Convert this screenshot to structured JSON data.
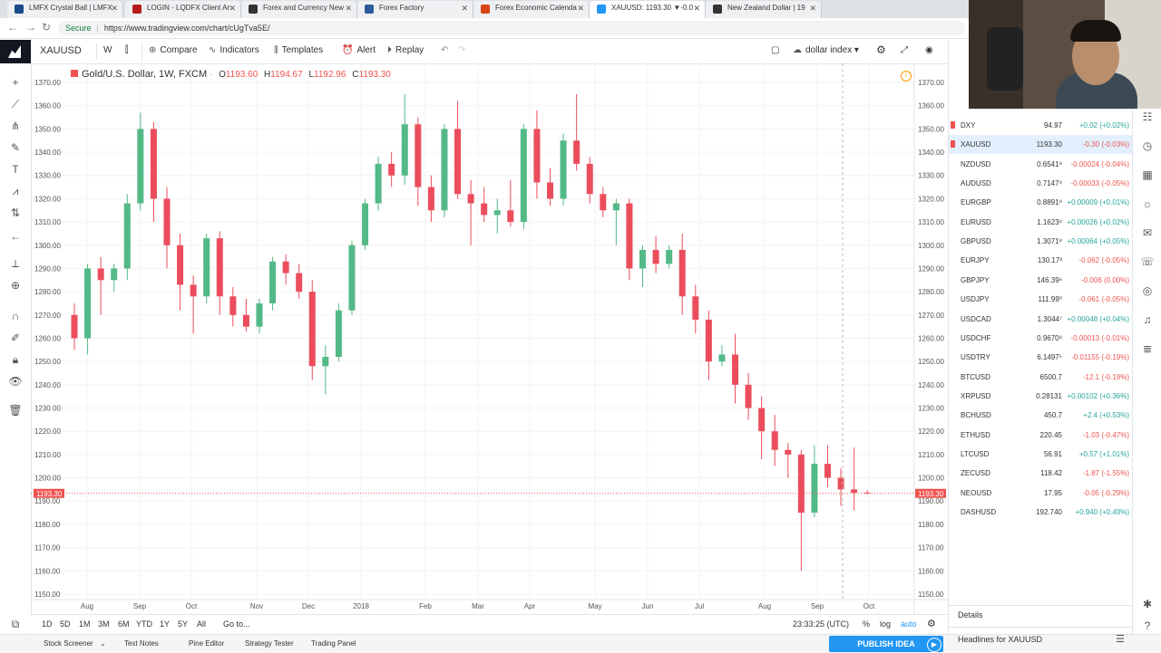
{
  "browser": {
    "tabs": [
      {
        "title": "LMFX Crystal Ball | LMFX",
        "color": "#1a4a8a"
      },
      {
        "title": "LOGIN - LQDFX Client Ar",
        "color": "#b71c1c"
      },
      {
        "title": "Forex and Currency New",
        "color": "#333333"
      },
      {
        "title": "Forex Factory",
        "color": "#2e5a9a"
      },
      {
        "title": "Forex Economic Calenda",
        "color": "#d84315"
      },
      {
        "title": "XAUUSD: 1193.30 ▼-0.0",
        "color": "#2196f3"
      },
      {
        "title": "New Zealand Dollar | 19",
        "color": "#333333"
      }
    ],
    "secure_label": "Secure",
    "url": "https://www.tradingview.com/chart/cUgTva5E/"
  },
  "toolbar": {
    "symbol": "XAUUSD",
    "interval": "W",
    "compare": "Compare",
    "indicators": "Indicators",
    "templates": "Templates",
    "alert": "Alert",
    "replay": "Replay",
    "layout_name": "dollar index"
  },
  "legend": {
    "title": "Gold/U.S. Dollar, 1W, FXCM",
    "o_label": "O",
    "o": "1193.60",
    "h_label": "H",
    "h": "1194.67",
    "l_label": "L",
    "l": "1192.96",
    "c_label": "C",
    "c": "1193.30"
  },
  "chart_data": {
    "type": "candlestick",
    "symbol": "XAUUSD",
    "interval": "1W",
    "ylim": [
      1150,
      1370
    ],
    "y_ticks": [
      "1370.00",
      "1360.00",
      "1350.00",
      "1340.00",
      "1330.00",
      "1320.00",
      "1310.00",
      "1300.00",
      "1290.00",
      "1280.00",
      "1270.00",
      "1260.00",
      "1250.00",
      "1240.00",
      "1230.00",
      "1220.00",
      "1210.00",
      "1200.00",
      "1190.00",
      "1180.00",
      "1170.00",
      "1160.00",
      "1150.00"
    ],
    "x_ticks": [
      "Aug",
      "Sep",
      "Oct",
      "Nov",
      "Dec",
      "2018",
      "Feb",
      "Mar",
      "Apr",
      "May",
      "Jun",
      "Jul",
      "Aug",
      "Sep",
      "Oct"
    ],
    "last_price": "1193.30",
    "up_color": "#53b987",
    "down_color": "#eb4d5c",
    "candles": [
      {
        "o": 1270,
        "h": 1275,
        "l": 1255,
        "c": 1260
      },
      {
        "o": 1260,
        "h": 1292,
        "l": 1253,
        "c": 1290
      },
      {
        "o": 1290,
        "h": 1295,
        "l": 1270,
        "c": 1285
      },
      {
        "o": 1285,
        "h": 1292,
        "l": 1280,
        "c": 1290
      },
      {
        "o": 1290,
        "h": 1322,
        "l": 1285,
        "c": 1318
      },
      {
        "o": 1318,
        "h": 1357,
        "l": 1315,
        "c": 1350
      },
      {
        "o": 1350,
        "h": 1353,
        "l": 1310,
        "c": 1320
      },
      {
        "o": 1320,
        "h": 1325,
        "l": 1290,
        "c": 1300
      },
      {
        "o": 1300,
        "h": 1305,
        "l": 1272,
        "c": 1283
      },
      {
        "o": 1283,
        "h": 1287,
        "l": 1262,
        "c": 1278
      },
      {
        "o": 1278,
        "h": 1305,
        "l": 1275,
        "c": 1303
      },
      {
        "o": 1303,
        "h": 1306,
        "l": 1270,
        "c": 1278
      },
      {
        "o": 1278,
        "h": 1282,
        "l": 1265,
        "c": 1270
      },
      {
        "o": 1270,
        "h": 1277,
        "l": 1263,
        "c": 1265
      },
      {
        "o": 1265,
        "h": 1277,
        "l": 1262,
        "c": 1275
      },
      {
        "o": 1275,
        "h": 1295,
        "l": 1272,
        "c": 1293
      },
      {
        "o": 1293,
        "h": 1296,
        "l": 1283,
        "c": 1288
      },
      {
        "o": 1288,
        "h": 1292,
        "l": 1277,
        "c": 1280
      },
      {
        "o": 1280,
        "h": 1285,
        "l": 1242,
        "c": 1248
      },
      {
        "o": 1248,
        "h": 1257,
        "l": 1236,
        "c": 1252
      },
      {
        "o": 1252,
        "h": 1275,
        "l": 1250,
        "c": 1272
      },
      {
        "o": 1272,
        "h": 1302,
        "l": 1270,
        "c": 1300
      },
      {
        "o": 1300,
        "h": 1320,
        "l": 1298,
        "c": 1318
      },
      {
        "o": 1318,
        "h": 1338,
        "l": 1315,
        "c": 1335
      },
      {
        "o": 1335,
        "h": 1340,
        "l": 1325,
        "c": 1330
      },
      {
        "o": 1330,
        "h": 1365,
        "l": 1326,
        "c": 1352
      },
      {
        "o": 1352,
        "h": 1355,
        "l": 1317,
        "c": 1325
      },
      {
        "o": 1325,
        "h": 1330,
        "l": 1310,
        "c": 1315
      },
      {
        "o": 1315,
        "h": 1352,
        "l": 1312,
        "c": 1350
      },
      {
        "o": 1350,
        "h": 1362,
        "l": 1320,
        "c": 1322
      },
      {
        "o": 1322,
        "h": 1328,
        "l": 1300,
        "c": 1318
      },
      {
        "o": 1318,
        "h": 1325,
        "l": 1310,
        "c": 1313
      },
      {
        "o": 1313,
        "h": 1320,
        "l": 1305,
        "c": 1315
      },
      {
        "o": 1315,
        "h": 1328,
        "l": 1308,
        "c": 1310
      },
      {
        "o": 1310,
        "h": 1352,
        "l": 1307,
        "c": 1350
      },
      {
        "o": 1350,
        "h": 1358,
        "l": 1320,
        "c": 1327
      },
      {
        "o": 1327,
        "h": 1333,
        "l": 1317,
        "c": 1320
      },
      {
        "o": 1320,
        "h": 1348,
        "l": 1317,
        "c": 1345
      },
      {
        "o": 1345,
        "h": 1365,
        "l": 1332,
        "c": 1335
      },
      {
        "o": 1335,
        "h": 1338,
        "l": 1318,
        "c": 1322
      },
      {
        "o": 1322,
        "h": 1325,
        "l": 1312,
        "c": 1315
      },
      {
        "o": 1315,
        "h": 1320,
        "l": 1300,
        "c": 1318
      },
      {
        "o": 1318,
        "h": 1320,
        "l": 1285,
        "c": 1290
      },
      {
        "o": 1290,
        "h": 1300,
        "l": 1282,
        "c": 1298
      },
      {
        "o": 1298,
        "h": 1304,
        "l": 1288,
        "c": 1292
      },
      {
        "o": 1292,
        "h": 1300,
        "l": 1290,
        "c": 1298
      },
      {
        "o": 1298,
        "h": 1305,
        "l": 1270,
        "c": 1278
      },
      {
        "o": 1278,
        "h": 1283,
        "l": 1262,
        "c": 1268
      },
      {
        "o": 1268,
        "h": 1272,
        "l": 1242,
        "c": 1250
      },
      {
        "o": 1250,
        "h": 1257,
        "l": 1248,
        "c": 1253
      },
      {
        "o": 1253,
        "h": 1262,
        "l": 1232,
        "c": 1240
      },
      {
        "o": 1240,
        "h": 1245,
        "l": 1225,
        "c": 1230
      },
      {
        "o": 1230,
        "h": 1235,
        "l": 1208,
        "c": 1220
      },
      {
        "o": 1220,
        "h": 1227,
        "l": 1205,
        "c": 1212
      },
      {
        "o": 1212,
        "h": 1215,
        "l": 1200,
        "c": 1210
      },
      {
        "o": 1210,
        "h": 1212,
        "l": 1160,
        "c": 1185
      },
      {
        "o": 1185,
        "h": 1214,
        "l": 1183,
        "c": 1206
      },
      {
        "o": 1206,
        "h": 1214,
        "l": 1196,
        "c": 1200
      },
      {
        "o": 1200,
        "h": 1204,
        "l": 1188,
        "c": 1195
      },
      {
        "o": 1195,
        "h": 1213,
        "l": 1186,
        "c": 1193.6
      },
      {
        "o": 1193.6,
        "h": 1194.67,
        "l": 1192.96,
        "c": 1193.3
      }
    ]
  },
  "bottombar": {
    "ranges": [
      "1D",
      "5D",
      "1M",
      "3M",
      "6M",
      "YTD",
      "1Y",
      "5Y",
      "All"
    ],
    "goto": "Go to...",
    "time": "23:33:25 (UTC)",
    "pct": "%",
    "log": "log",
    "auto": "auto"
  },
  "footer": {
    "tabs": [
      "Stock Screener",
      "Text Notes",
      "Pine Editor",
      "Strategy Tester",
      "Trading Panel"
    ],
    "publish": "PUBLISH IDEA"
  },
  "watchlist": {
    "rows": [
      {
        "sym": "DXY",
        "last": "94.97",
        "chg": "+0.02 (+0.02%)",
        "up": true,
        "flag": true
      },
      {
        "sym": "XAUUSD",
        "last": "1193.30",
        "chg": "-0.30 (-0.03%)",
        "up": false,
        "flag": true,
        "sel": true
      },
      {
        "sym": "NZDUSD",
        "last": "0.6541⁹",
        "chg": "-0.00024 (-0.04%)",
        "up": false
      },
      {
        "sym": "AUDUSD",
        "last": "0.7147⁹",
        "chg": "-0.00033 (-0.05%)",
        "up": false
      },
      {
        "sym": "EURGBP",
        "last": "0.8891⁹",
        "chg": "+0.00009 (+0.01%)",
        "up": true
      },
      {
        "sym": "EURUSD",
        "last": "1.1623⁸",
        "chg": "+0.00026 (+0.02%)",
        "up": true
      },
      {
        "sym": "GBPUSD",
        "last": "1.3071⁸",
        "chg": "+0.00064 (+0.05%)",
        "up": true
      },
      {
        "sym": "EURJPY",
        "last": "130.17³",
        "chg": "-0.062 (-0.05%)",
        "up": false
      },
      {
        "sym": "GBPJPY",
        "last": "146.39⁶",
        "chg": "-0.006 (0.00%)",
        "up": false
      },
      {
        "sym": "USDJPY",
        "last": "111.99⁰",
        "chg": "-0.061 (-0.05%)",
        "up": false
      },
      {
        "sym": "USDCAD",
        "last": "1.3044⁷",
        "chg": "+0.00048 (+0.04%)",
        "up": true
      },
      {
        "sym": "USDCHF",
        "last": "0.9670⁸",
        "chg": "-0.00013 (-0.01%)",
        "up": false
      },
      {
        "sym": "USDTRY",
        "last": "6.1497⁵",
        "chg": "-0.01155 (-0.19%)",
        "up": false
      },
      {
        "sym": "BTCUSD",
        "last": "6500.7",
        "chg": "-12.1 (-0.19%)",
        "up": false
      },
      {
        "sym": "XRPUSD",
        "last": "0.28131",
        "chg": "+0.00102 (+0.36%)",
        "up": true
      },
      {
        "sym": "BCHUSD",
        "last": "450.7",
        "chg": "+2.4 (+0.53%)",
        "up": true
      },
      {
        "sym": "ETHUSD",
        "last": "220.45",
        "chg": "-1.03 (-0.47%)",
        "up": false
      },
      {
        "sym": "LTCUSD",
        "last": "56.91",
        "chg": "+0.57 (+1.01%)",
        "up": true
      },
      {
        "sym": "ZECUSD",
        "last": "118.42",
        "chg": "-1.87 (-1.55%)",
        "up": false
      },
      {
        "sym": "NEOUSD",
        "last": "17.95",
        "chg": "-0.05 (-0.29%)",
        "up": false
      },
      {
        "sym": "DASHUSD",
        "last": "192.740",
        "chg": "+0.940 (+0.49%)",
        "up": true
      }
    ],
    "details": "Details",
    "headlines": "Headlines for XAUUSD",
    "up_color": "#26a69a",
    "down_color": "#ef5350"
  }
}
